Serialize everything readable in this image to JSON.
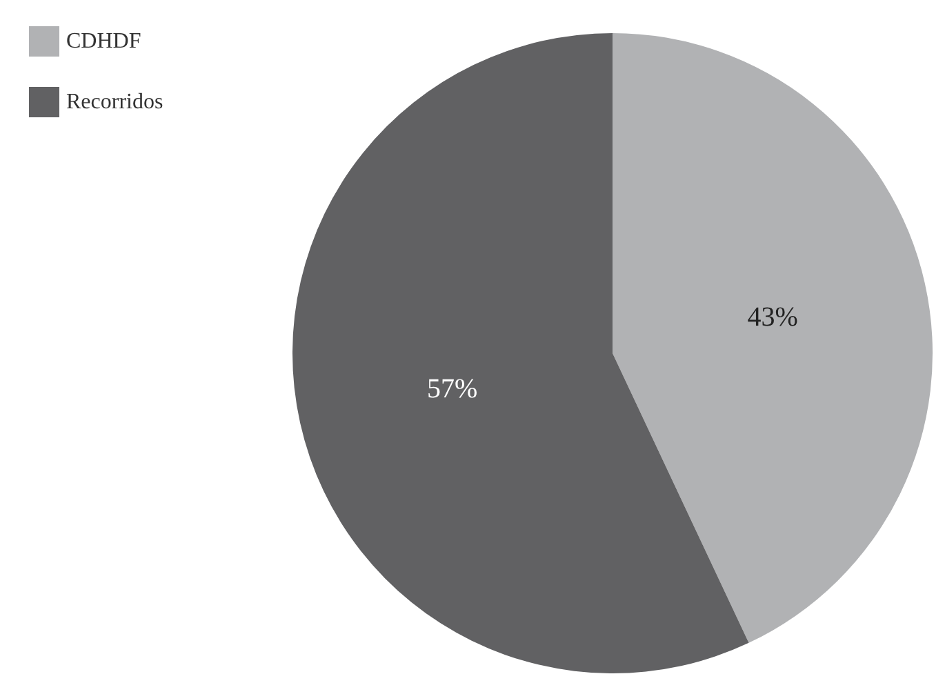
{
  "chart_data": {
    "type": "pie",
    "categories": [
      "CDHDF",
      "Recorridos"
    ],
    "values": [
      43,
      57
    ],
    "colors": [
      "#b1b2b4",
      "#616163"
    ],
    "value_labels": [
      "43%",
      "57%"
    ],
    "legend": "top left"
  }
}
